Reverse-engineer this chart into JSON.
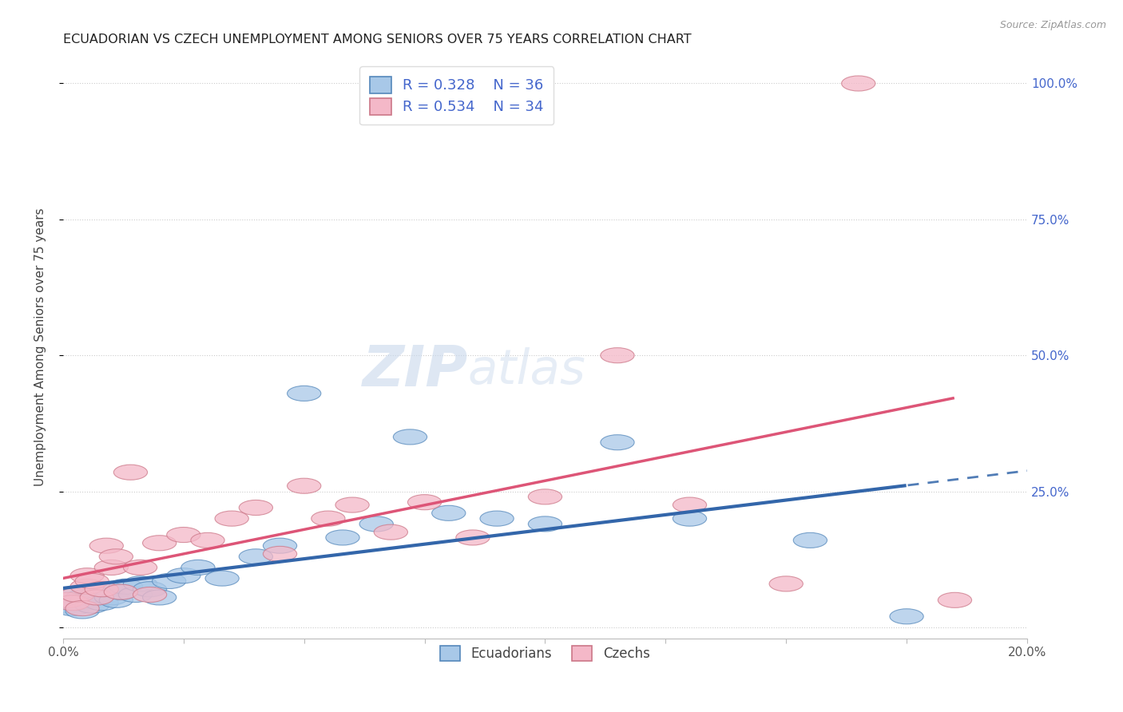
{
  "title": "ECUADORIAN VS CZECH UNEMPLOYMENT AMONG SENIORS OVER 75 YEARS CORRELATION CHART",
  "source": "Source: ZipAtlas.com",
  "ylabel": "Unemployment Among Seniors over 75 years",
  "xlim": [
    0.0,
    0.2
  ],
  "ylim": [
    -0.02,
    1.05
  ],
  "yticks": [
    0.0,
    0.25,
    0.5,
    0.75,
    1.0
  ],
  "ytick_labels": [
    "",
    "25.0%",
    "50.0%",
    "75.0%",
    "100.0%"
  ],
  "ecuadorians_x": [
    0.001,
    0.002,
    0.003,
    0.003,
    0.004,
    0.004,
    0.005,
    0.006,
    0.007,
    0.008,
    0.009,
    0.01,
    0.011,
    0.012,
    0.013,
    0.015,
    0.016,
    0.018,
    0.02,
    0.022,
    0.025,
    0.028,
    0.033,
    0.04,
    0.045,
    0.05,
    0.058,
    0.065,
    0.072,
    0.08,
    0.09,
    0.1,
    0.115,
    0.13,
    0.155,
    0.175
  ],
  "ecuadorians_y": [
    0.04,
    0.035,
    0.045,
    0.06,
    0.03,
    0.055,
    0.05,
    0.04,
    0.06,
    0.045,
    0.07,
    0.055,
    0.05,
    0.065,
    0.075,
    0.06,
    0.08,
    0.07,
    0.055,
    0.085,
    0.095,
    0.11,
    0.09,
    0.13,
    0.15,
    0.43,
    0.165,
    0.19,
    0.35,
    0.21,
    0.2,
    0.19,
    0.34,
    0.2,
    0.16,
    0.02
  ],
  "czechs_x": [
    0.001,
    0.002,
    0.003,
    0.004,
    0.005,
    0.005,
    0.006,
    0.007,
    0.008,
    0.009,
    0.01,
    0.011,
    0.012,
    0.014,
    0.016,
    0.018,
    0.02,
    0.025,
    0.03,
    0.035,
    0.04,
    0.045,
    0.05,
    0.055,
    0.06,
    0.068,
    0.075,
    0.085,
    0.1,
    0.115,
    0.13,
    0.15,
    0.165,
    0.185
  ],
  "czechs_y": [
    0.05,
    0.045,
    0.06,
    0.035,
    0.075,
    0.095,
    0.085,
    0.055,
    0.07,
    0.15,
    0.11,
    0.13,
    0.065,
    0.285,
    0.11,
    0.06,
    0.155,
    0.17,
    0.16,
    0.2,
    0.22,
    0.135,
    0.26,
    0.2,
    0.225,
    0.175,
    0.23,
    0.165,
    0.24,
    0.5,
    0.225,
    0.08,
    1.0,
    0.05
  ],
  "R_ecu": 0.328,
  "N_ecu": 36,
  "R_cze": 0.534,
  "N_cze": 34,
  "color_ecu_fill": "#a8c8e8",
  "color_ecu_edge": "#5588bb",
  "color_cze_fill": "#f4b8c8",
  "color_cze_edge": "#cc7788",
  "color_ecu_line": "#3366aa",
  "color_cze_line": "#dd5577",
  "color_right_axis": "#4466cc",
  "background": "#ffffff",
  "grid_color": "#cccccc"
}
